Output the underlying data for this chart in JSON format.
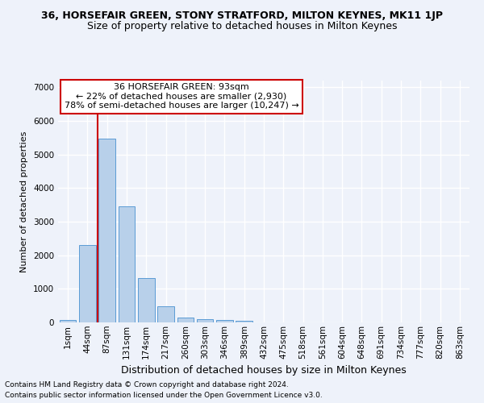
{
  "title": "36, HORSEFAIR GREEN, STONY STRATFORD, MILTON KEYNES, MK11 1JP",
  "subtitle": "Size of property relative to detached houses in Milton Keynes",
  "xlabel": "Distribution of detached houses by size in Milton Keynes",
  "ylabel": "Number of detached properties",
  "footer_line1": "Contains HM Land Registry data © Crown copyright and database right 2024.",
  "footer_line2": "Contains public sector information licensed under the Open Government Licence v3.0.",
  "annotation_title": "36 HORSEFAIR GREEN: 93sqm",
  "annotation_line1": "← 22% of detached houses are smaller (2,930)",
  "annotation_line2": "78% of semi-detached houses are larger (10,247) →",
  "bar_color": "#b8d0ea",
  "bar_edge_color": "#5b9bd5",
  "vline_color": "#cc0000",
  "vline_x_index": 2,
  "categories": [
    "1sqm",
    "44sqm",
    "87sqm",
    "131sqm",
    "174sqm",
    "217sqm",
    "260sqm",
    "303sqm",
    "346sqm",
    "389sqm",
    "432sqm",
    "475sqm",
    "518sqm",
    "561sqm",
    "604sqm",
    "648sqm",
    "691sqm",
    "734sqm",
    "777sqm",
    "820sqm",
    "863sqm"
  ],
  "values": [
    75,
    2300,
    5480,
    3450,
    1310,
    470,
    155,
    95,
    65,
    40,
    0,
    0,
    0,
    0,
    0,
    0,
    0,
    0,
    0,
    0,
    0
  ],
  "ylim": [
    0,
    7200
  ],
  "yticks": [
    0,
    1000,
    2000,
    3000,
    4000,
    5000,
    6000,
    7000
  ],
  "bg_color": "#eef2fa",
  "grid_color": "#ffffff",
  "title_fontsize": 9,
  "subtitle_fontsize": 9,
  "ylabel_fontsize": 8,
  "xlabel_fontsize": 9,
  "tick_fontsize": 7.5,
  "annotation_fontsize": 8,
  "footer_fontsize": 6.5,
  "annotation_box_color": "#ffffff",
  "annotation_box_edge": "#cc0000"
}
